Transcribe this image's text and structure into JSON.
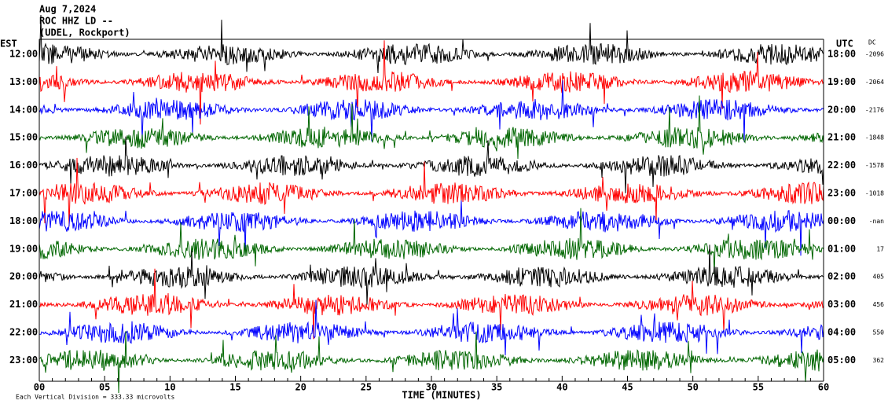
{
  "header": {
    "date": "Aug 7,2024",
    "station": "ROC HHZ LD --",
    "location": "(UDEL, Rockport)"
  },
  "left_axis": {
    "title": "EST",
    "labels": [
      "12:00",
      "13:00",
      "14:00",
      "15:00",
      "16:00",
      "17:00",
      "18:00",
      "19:00",
      "20:00",
      "21:00",
      "22:00",
      "23:00"
    ]
  },
  "right_axis": {
    "title": "UTC",
    "labels": [
      "18:00",
      "19:00",
      "20:00",
      "21:00",
      "22:00",
      "23:00",
      "00:00",
      "01:00",
      "02:00",
      "03:00",
      "04:00",
      "05:00"
    ]
  },
  "dc": {
    "title": "DC",
    "values": [
      "-2096",
      "-2064",
      "-2176",
      "-1848",
      "-1578",
      "-1018",
      "-nan",
      "17",
      "405",
      "456",
      "550",
      "362"
    ]
  },
  "x_axis": {
    "title": "TIME (MINUTES)",
    "ticks": [
      "00",
      "05",
      "10",
      "15",
      "20",
      "25",
      "30",
      "35",
      "40",
      "45",
      "50",
      "55",
      "60"
    ]
  },
  "footer": "Each Vertical Division =  333.33 microvolts"
}
